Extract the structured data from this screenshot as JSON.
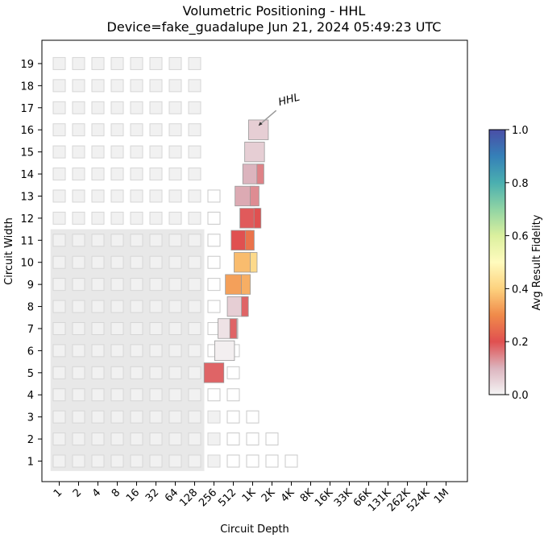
{
  "chart_data": {
    "type": "heatmap",
    "title": "Volumetric Positioning - HHL",
    "subtitle": "Device=fake_guadalupe  Jun 21, 2024 05:49:23 UTC",
    "xlabel": "Circuit Depth",
    "ylabel": "Circuit Width",
    "x_ticks": [
      "1",
      "2",
      "4",
      "8",
      "16",
      "32",
      "64",
      "128",
      "256",
      "512",
      "1K",
      "2K",
      "4K",
      "8K",
      "16K",
      "33K",
      "66K",
      "131K",
      "262K",
      "524K",
      "1M"
    ],
    "y_ticks": [
      "1",
      "2",
      "3",
      "4",
      "5",
      "6",
      "7",
      "8",
      "9",
      "10",
      "11",
      "12",
      "13",
      "14",
      "15",
      "16",
      "17",
      "18",
      "19"
    ],
    "colorbar": {
      "label": "Avg Result Fidelity",
      "ticks": [
        "0.0",
        "0.2",
        "0.4",
        "0.6",
        "0.8",
        "1.0"
      ],
      "range": [
        0,
        1
      ]
    },
    "annotation": {
      "text": "HHL",
      "target": {
        "log2_depth": 10.3,
        "width": 16
      }
    },
    "quality_shading": {
      "max_log2_depth": 7.5,
      "max_width": 11,
      "color": "#e8e8e8"
    },
    "reference_grid": [
      {
        "width": 1,
        "max_log2_depth": 12,
        "fill_from": 9
      },
      {
        "width": 2,
        "max_log2_depth": 11,
        "fill_from": 9
      },
      {
        "width": 3,
        "max_log2_depth": 10,
        "fill_from": 9
      },
      {
        "width": 4,
        "max_log2_depth": 9,
        "fill_from": 8
      },
      {
        "width": 5,
        "max_log2_depth": 9,
        "fill_from": 8
      },
      {
        "width": 6,
        "max_log2_depth": 9,
        "fill_from": 8
      },
      {
        "width": 7,
        "max_log2_depth": 8,
        "fill_from": 8
      },
      {
        "width": 8,
        "max_log2_depth": 8,
        "fill_from": 8
      },
      {
        "width": 9,
        "max_log2_depth": 8,
        "fill_from": 8
      },
      {
        "width": 10,
        "max_log2_depth": 8,
        "fill_from": 8
      },
      {
        "width": 11,
        "max_log2_depth": 8,
        "fill_from": 8
      },
      {
        "width": 12,
        "max_log2_depth": 8,
        "fill_from": 8
      },
      {
        "width": 13,
        "max_log2_depth": 8,
        "fill_from": 8
      },
      {
        "width": 14,
        "max_log2_depth": 7,
        "fill_from": 8
      },
      {
        "width": 15,
        "max_log2_depth": 7,
        "fill_from": 8
      },
      {
        "width": 16,
        "max_log2_depth": 7,
        "fill_from": 8
      },
      {
        "width": 17,
        "max_log2_depth": 7,
        "fill_from": 8
      },
      {
        "width": 18,
        "max_log2_depth": 7,
        "fill_from": 8
      },
      {
        "width": 19,
        "max_log2_depth": 7,
        "fill_from": 8
      }
    ],
    "data_points": [
      {
        "width": 5,
        "log2_depth": 8.0,
        "fidelity": 0.18,
        "size": 1.0
      },
      {
        "width": 6,
        "log2_depth": 8.55,
        "fidelity": 0.01,
        "size": 1.0
      },
      {
        "width": 7,
        "log2_depth": 9.0,
        "fidelity": 0.18,
        "size": 0.35
      },
      {
        "width": 7,
        "log2_depth": 8.72,
        "fidelity": 0.03,
        "size": 1.0
      },
      {
        "width": 8,
        "log2_depth": 9.6,
        "fidelity": 0.18,
        "size": 0.35
      },
      {
        "width": 8,
        "log2_depth": 9.2,
        "fidelity": 0.06,
        "size": 1.0
      },
      {
        "width": 9,
        "log2_depth": 9.65,
        "fidelity": 0.35,
        "size": 0.45
      },
      {
        "width": 9,
        "log2_depth": 9.1,
        "fidelity": 0.33,
        "size": 1.0
      },
      {
        "width": 10,
        "log2_depth": 10.05,
        "fidelity": 0.42,
        "size": 0.35
      },
      {
        "width": 10,
        "log2_depth": 9.55,
        "fidelity": 0.37,
        "size": 1.0
      },
      {
        "width": 11,
        "log2_depth": 9.85,
        "fidelity": 0.26,
        "size": 0.45
      },
      {
        "width": 11,
        "log2_depth": 9.4,
        "fidelity": 0.2,
        "size": 1.0
      },
      {
        "width": 12,
        "log2_depth": 10.25,
        "fidelity": 0.2,
        "size": 0.35
      },
      {
        "width": 12,
        "log2_depth": 9.85,
        "fidelity": 0.19,
        "size": 1.0
      },
      {
        "width": 13,
        "log2_depth": 10.1,
        "fidelity": 0.14,
        "size": 0.45
      },
      {
        "width": 13,
        "log2_depth": 9.6,
        "fidelity": 0.11,
        "size": 1.0
      },
      {
        "width": 14,
        "log2_depth": 10.4,
        "fidelity": 0.15,
        "size": 0.35
      },
      {
        "width": 14,
        "log2_depth": 10.0,
        "fidelity": 0.1,
        "size": 1.0
      },
      {
        "width": 15,
        "log2_depth": 10.1,
        "fidelity": 0.06,
        "size": 1.0
      },
      {
        "width": 16,
        "log2_depth": 10.3,
        "fidelity": 0.06,
        "size": 1.0
      }
    ]
  }
}
